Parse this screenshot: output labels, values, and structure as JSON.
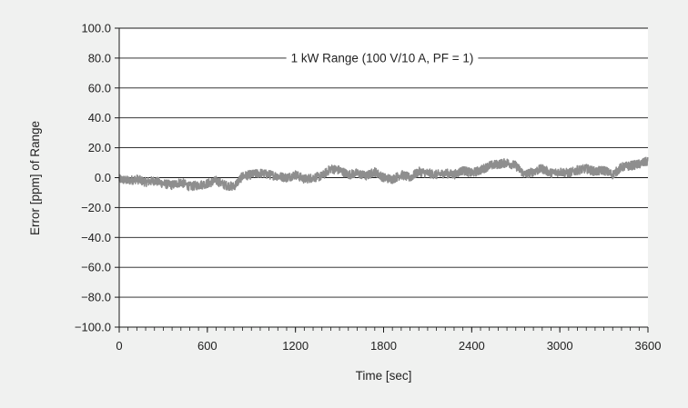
{
  "chart_data": {
    "type": "line",
    "title": "",
    "annotation": "1 kW Range (100 V/10 A, PF = 1)",
    "xlabel": "Time [sec]",
    "ylabel": "Error [ppm] of Range",
    "xlim": [
      0,
      3600
    ],
    "ylim": [
      -100,
      100
    ],
    "x_ticks": [
      0,
      600,
      1200,
      1800,
      2400,
      3000,
      3600
    ],
    "x_tick_labels": [
      "0",
      "600",
      "1200",
      "1800",
      "2400",
      "3000",
      "3600"
    ],
    "y_ticks": [
      100,
      80,
      60,
      40,
      20,
      0,
      -20,
      -40,
      -60,
      -80,
      -100
    ],
    "y_tick_labels": [
      "100.0",
      "80.0",
      "60.0",
      "40.0",
      "20.0",
      "0.0",
      "−20.0",
      "−40.0",
      "−60.0",
      "−80.0",
      "−100.0"
    ],
    "grid": "horizontal",
    "legend": "none",
    "series": [
      {
        "color": "#8e8e8e",
        "x": [
          0,
          60,
          120,
          180,
          240,
          300,
          360,
          420,
          480,
          540,
          600,
          660,
          720,
          780,
          840,
          900,
          960,
          1020,
          1080,
          1140,
          1200,
          1260,
          1320,
          1380,
          1440,
          1500,
          1560,
          1620,
          1680,
          1740,
          1800,
          1860,
          1920,
          1980,
          2040,
          2100,
          2160,
          2220,
          2280,
          2340,
          2400,
          2460,
          2520,
          2580,
          2640,
          2700,
          2760,
          2820,
          2880,
          2940,
          3000,
          3060,
          3120,
          3180,
          3240,
          3300,
          3360,
          3420,
          3480,
          3540,
          3600
        ],
        "y": [
          -1,
          -2,
          -1,
          -3,
          -2,
          -4,
          -5,
          -3,
          -6,
          -5,
          -4,
          -2,
          -5,
          -6,
          1,
          2,
          3,
          2,
          1,
          0,
          2,
          -1,
          0,
          1,
          6,
          5,
          2,
          3,
          1,
          4,
          0,
          -1,
          2,
          0,
          4,
          3,
          2,
          3,
          2,
          5,
          3,
          5,
          8,
          9,
          10,
          8,
          2,
          4,
          6,
          3,
          4,
          3,
          5,
          6,
          4,
          5,
          2,
          7,
          8,
          9,
          11
        ]
      }
    ]
  },
  "style": {
    "background": "#f0f1f0",
    "plot_background": "#ffffff",
    "axis_color": "#1a1a1a",
    "grid_color": "#1a1a1a",
    "series_color": "#8e8e8e"
  }
}
